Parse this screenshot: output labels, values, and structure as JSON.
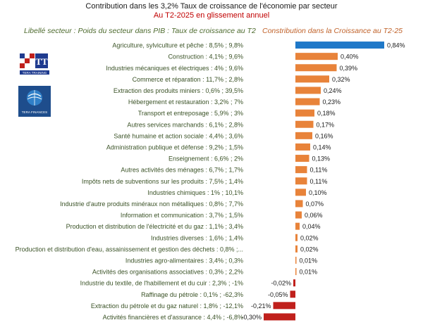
{
  "header": {
    "title": "Contribution dans les 3,2% Taux de croissance de l'économie par secteur",
    "subtitle": "Au T2-2025 en glissement annuel",
    "left_label": "Libellé secteur : Poids du secteur dans PIB : Taux de croissance au T2",
    "right_label": "Constribution dans la Croissance au T2-25"
  },
  "logos": {
    "logo1_text": "TERA TRAINING",
    "logo2_text": "TERA FINANCES"
  },
  "colors": {
    "top": "#1f78c8",
    "positive": "#e8833a",
    "negative": "#c0201c",
    "label_text": "#3a5226"
  },
  "chart_data": {
    "type": "bar",
    "orientation": "horizontal",
    "categories": [
      "Agriculture, sylviculture et pêche : 8,5% ; 9,8%",
      "Construction : 4,1% ; 9,6%",
      "Industries mécaniques et électriques : 4% ; 9,6%",
      "Commerce et réparation : 11,7% ; 2,8%",
      "Extraction des produits miniers : 0,6% ; 39,5%",
      "Hébergement et restauration : 3,2% ; 7%",
      "Transport et entreposage : 5,9% ; 3%",
      "Autres services marchands : 6,1% ; 2,8%",
      "Santé humaine et action sociale : 4,4% ; 3,6%",
      "Administration publique et défense : 9,2% ; 1,5%",
      "Enseignement : 6,6% ; 2%",
      "Autres activités des ménages : 6,7% ; 1,7%",
      "Impôts nets de subventions sur les produits : 7,5% ; 1,4%",
      "Industries chimiques : 1% ; 10,1%",
      "Industrie d'autre produits minéraux non métalliques : 0,8% ; 7,7%",
      "Information et communication : 3,7% ; 1,5%",
      "Production et distribution de l'électricité et du gaz : 1,1% ; 3,4%",
      "Industries diverses : 1,6% ; 1,4%",
      "Production et distribution d'eau, assainissement et gestion des déchets : 0,8% ;...",
      "Industries agro-alimentaires : 3,4% ; 0,3%",
      "Activités des organisations associatives : 0,3% ; 2,2%",
      "Industrie du textile, de l'habillement et du cuir : 2,3% ; -1%",
      "Raffinage du pétrole : 0,1% ; -62,3%",
      "Extraction du pétrole et du gaz naturel : 1,8% ; -12,1%",
      "Activités financières et d'assurance : 4,4% ; -6,8%"
    ],
    "values": [
      0.84,
      0.4,
      0.39,
      0.32,
      0.24,
      0.23,
      0.18,
      0.17,
      0.16,
      0.14,
      0.13,
      0.11,
      0.11,
      0.1,
      0.07,
      0.06,
      0.04,
      0.02,
      0.02,
      0.01,
      0.01,
      -0.02,
      -0.05,
      -0.21,
      -0.3
    ],
    "value_labels": [
      "0,84%",
      "0,40%",
      "0,39%",
      "0,32%",
      "0,24%",
      "0,23%",
      "0,18%",
      "0,17%",
      "0,16%",
      "0,14%",
      "0,13%",
      "0,11%",
      "0,11%",
      "0,10%",
      "0,07%",
      "0,06%",
      "0,04%",
      "0,02%",
      "0,02%",
      "0,01%",
      "0,01%",
      "-0,02%",
      "-0,05%",
      "-0,21%",
      "-0,30%"
    ],
    "xlim": [
      -0.3,
      0.84
    ],
    "grid": false,
    "legend": "none"
  }
}
